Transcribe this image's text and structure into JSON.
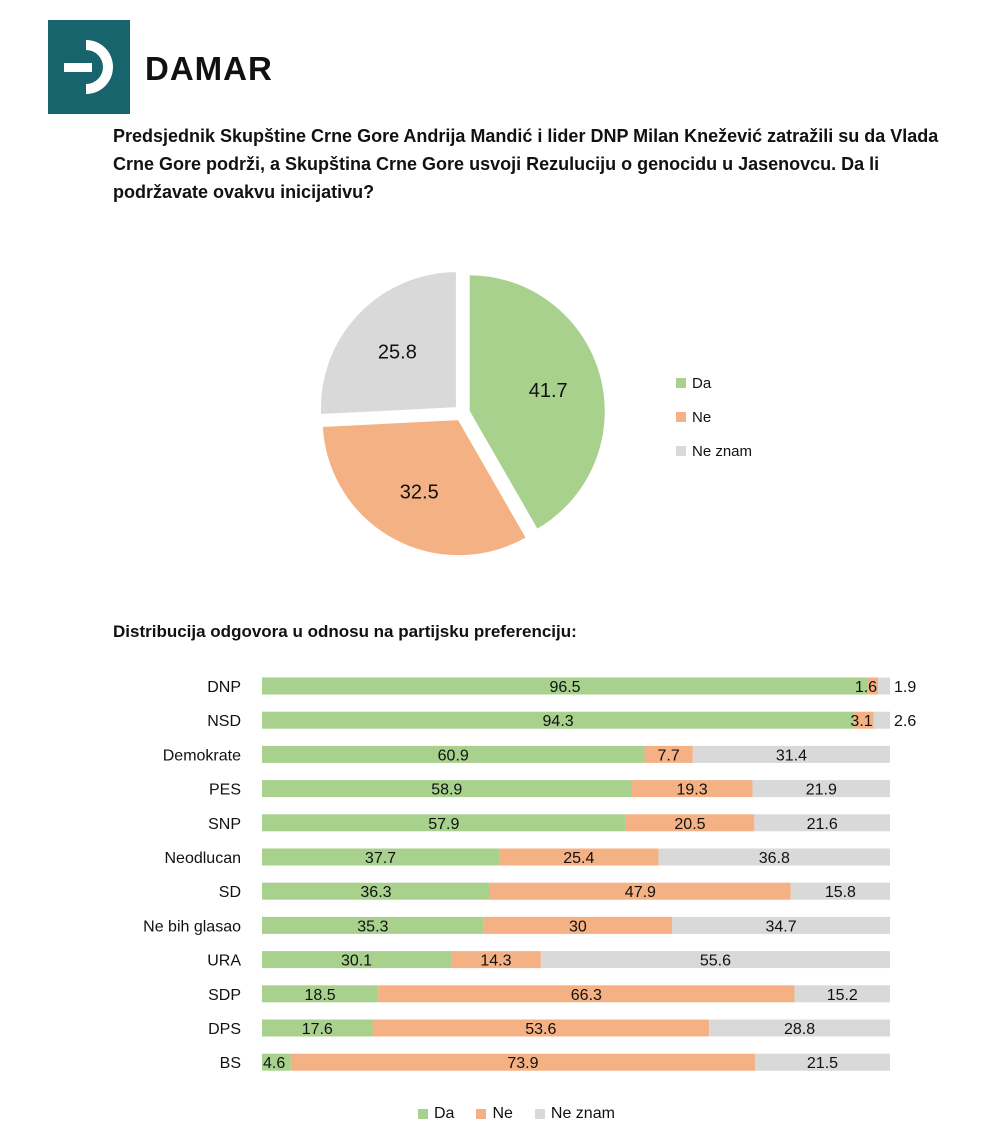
{
  "brand": {
    "name": "DAMAR",
    "color": "#17646d"
  },
  "question": "Predsjednik Skupštine Crne Gore Andrija Mandić i lider DNP Milan Knežević zatražili su da Vlada Crne Gore podrži, a Skupština Crne Gore usvoji Rezuluciju o genocidu u Jasenovcu. Da li podržavate ovakvu inicijativu?",
  "subtitle": "Distribucija odgovora u odnosu na partijsku preferenciju:",
  "colors": {
    "da": "#a9d18e",
    "ne": "#f4b183",
    "ne_znam": "#d9d9d9"
  },
  "chart_data": [
    {
      "type": "pie",
      "labels": [
        "Da",
        "Ne",
        "Ne znam"
      ],
      "values": [
        41.7,
        32.5,
        25.8
      ],
      "legend": "right"
    },
    {
      "type": "bar",
      "orientation": "horizontal",
      "stacked": true,
      "categories": [
        "DNP",
        "NSD",
        "Demokrate",
        "PES",
        "SNP",
        "Neodlucan",
        "SD",
        "Ne bih glasao",
        "URA",
        "SDP",
        "DPS",
        "BS"
      ],
      "series": [
        {
          "name": "Da",
          "values": [
            96.5,
            94.3,
            60.9,
            58.9,
            57.9,
            37.7,
            36.3,
            35.3,
            30.1,
            18.5,
            17.6,
            4.6
          ]
        },
        {
          "name": "Ne",
          "values": [
            1.6,
            3.1,
            7.7,
            19.3,
            20.5,
            25.4,
            47.9,
            30,
            14.3,
            66.3,
            53.6,
            73.9
          ]
        },
        {
          "name": "Ne znam",
          "values": [
            1.9,
            2.6,
            31.4,
            21.9,
            21.6,
            36.8,
            15.8,
            34.7,
            55.6,
            15.2,
            28.8,
            21.5
          ]
        }
      ],
      "legend": "bottom"
    }
  ]
}
